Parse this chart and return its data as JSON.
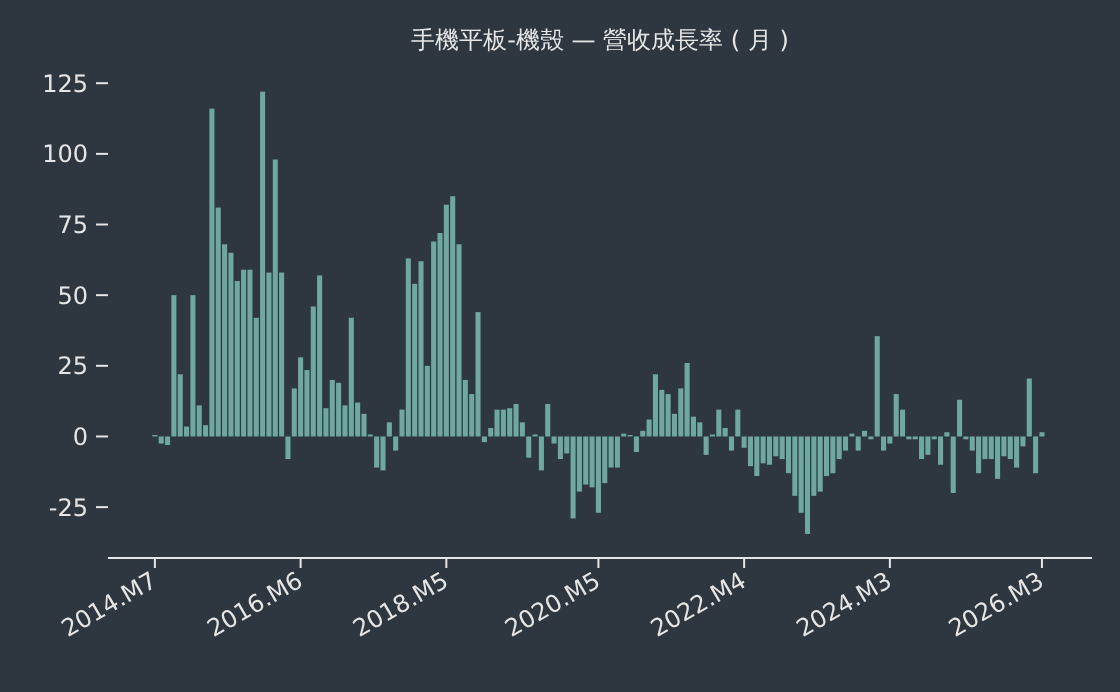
{
  "chart_data": {
    "type": "bar",
    "title": "手機平板-機殼 — 營收成長率 ( 月 )",
    "categories": [
      "2014.M7",
      null,
      null,
      null,
      null,
      null,
      null,
      null,
      null,
      null,
      null,
      null,
      null,
      null,
      null,
      null,
      null,
      null,
      null,
      null,
      null,
      null,
      null,
      "2016.M6",
      null,
      null,
      null,
      null,
      null,
      null,
      null,
      null,
      null,
      null,
      null,
      null,
      null,
      null,
      null,
      null,
      null,
      null,
      null,
      null,
      null,
      null,
      "2018.M5",
      null,
      null,
      null,
      null,
      null,
      null,
      null,
      null,
      null,
      null,
      null,
      null,
      null,
      null,
      null,
      null,
      null,
      null,
      null,
      null,
      null,
      null,
      null,
      "2020.M5",
      null,
      null,
      null,
      null,
      null,
      null,
      null,
      null,
      null,
      null,
      null,
      null,
      null,
      null,
      null,
      null,
      null,
      null,
      null,
      null,
      null,
      null,
      "2022.M4",
      null,
      null,
      null,
      null,
      null,
      null,
      null,
      null,
      null,
      null,
      null,
      null,
      null,
      null,
      null,
      null,
      null,
      null,
      null,
      null,
      null,
      null,
      "2024.M3",
      null,
      null,
      null,
      null,
      null,
      null,
      null,
      null,
      null,
      null,
      null,
      null,
      null,
      null,
      null,
      null,
      null,
      null,
      null,
      null,
      null,
      null,
      null,
      "2026.M3"
    ],
    "values": [
      0.5,
      -2.5,
      -3,
      50,
      22,
      3.5,
      50,
      11,
      4,
      116,
      81,
      68,
      65,
      55,
      59,
      59,
      42,
      122,
      58,
      98,
      58,
      -8,
      17,
      28,
      23.5,
      46,
      57,
      10,
      20,
      19,
      11,
      42,
      12,
      8,
      0.7,
      -11,
      -12,
      5,
      -5,
      9.5,
      63,
      54,
      62,
      25,
      69,
      72,
      82,
      85,
      68,
      20,
      15,
      44,
      -2,
      3,
      9.5,
      9.5,
      10,
      11.5,
      5,
      -7.5,
      0.7,
      -12,
      11.5,
      -2.5,
      -8,
      -6,
      -29,
      -19.5,
      -17,
      -18,
      -27,
      -16.5,
      -11,
      -11,
      1,
      0.5,
      -5.5,
      2,
      6,
      22,
      16.5,
      15,
      8,
      17,
      26,
      7,
      5,
      -6.5,
      0.7,
      9.5,
      3,
      -5,
      9.5,
      -4,
      -10.5,
      -14,
      -9.5,
      -10,
      -7,
      -8,
      -13,
      -21,
      -27,
      -34.5,
      -21,
      -19.5,
      -14,
      -13,
      -8,
      -5,
      1,
      -5,
      2,
      -1,
      35.5,
      -5,
      -2.5,
      15,
      9.5,
      -1,
      -1,
      -8,
      -6.5,
      -1,
      -10,
      1.5,
      -20,
      13,
      -1,
      -5,
      -13,
      -8,
      -8,
      -15,
      -7,
      -8,
      -11,
      -3.5,
      20.5,
      -13,
      1.5
    ],
    "color": "#6fa8a0",
    "ylim": [
      -43,
      125
    ],
    "yticks": [
      -25,
      0,
      25,
      50,
      75,
      100,
      125
    ],
    "grid": false
  }
}
